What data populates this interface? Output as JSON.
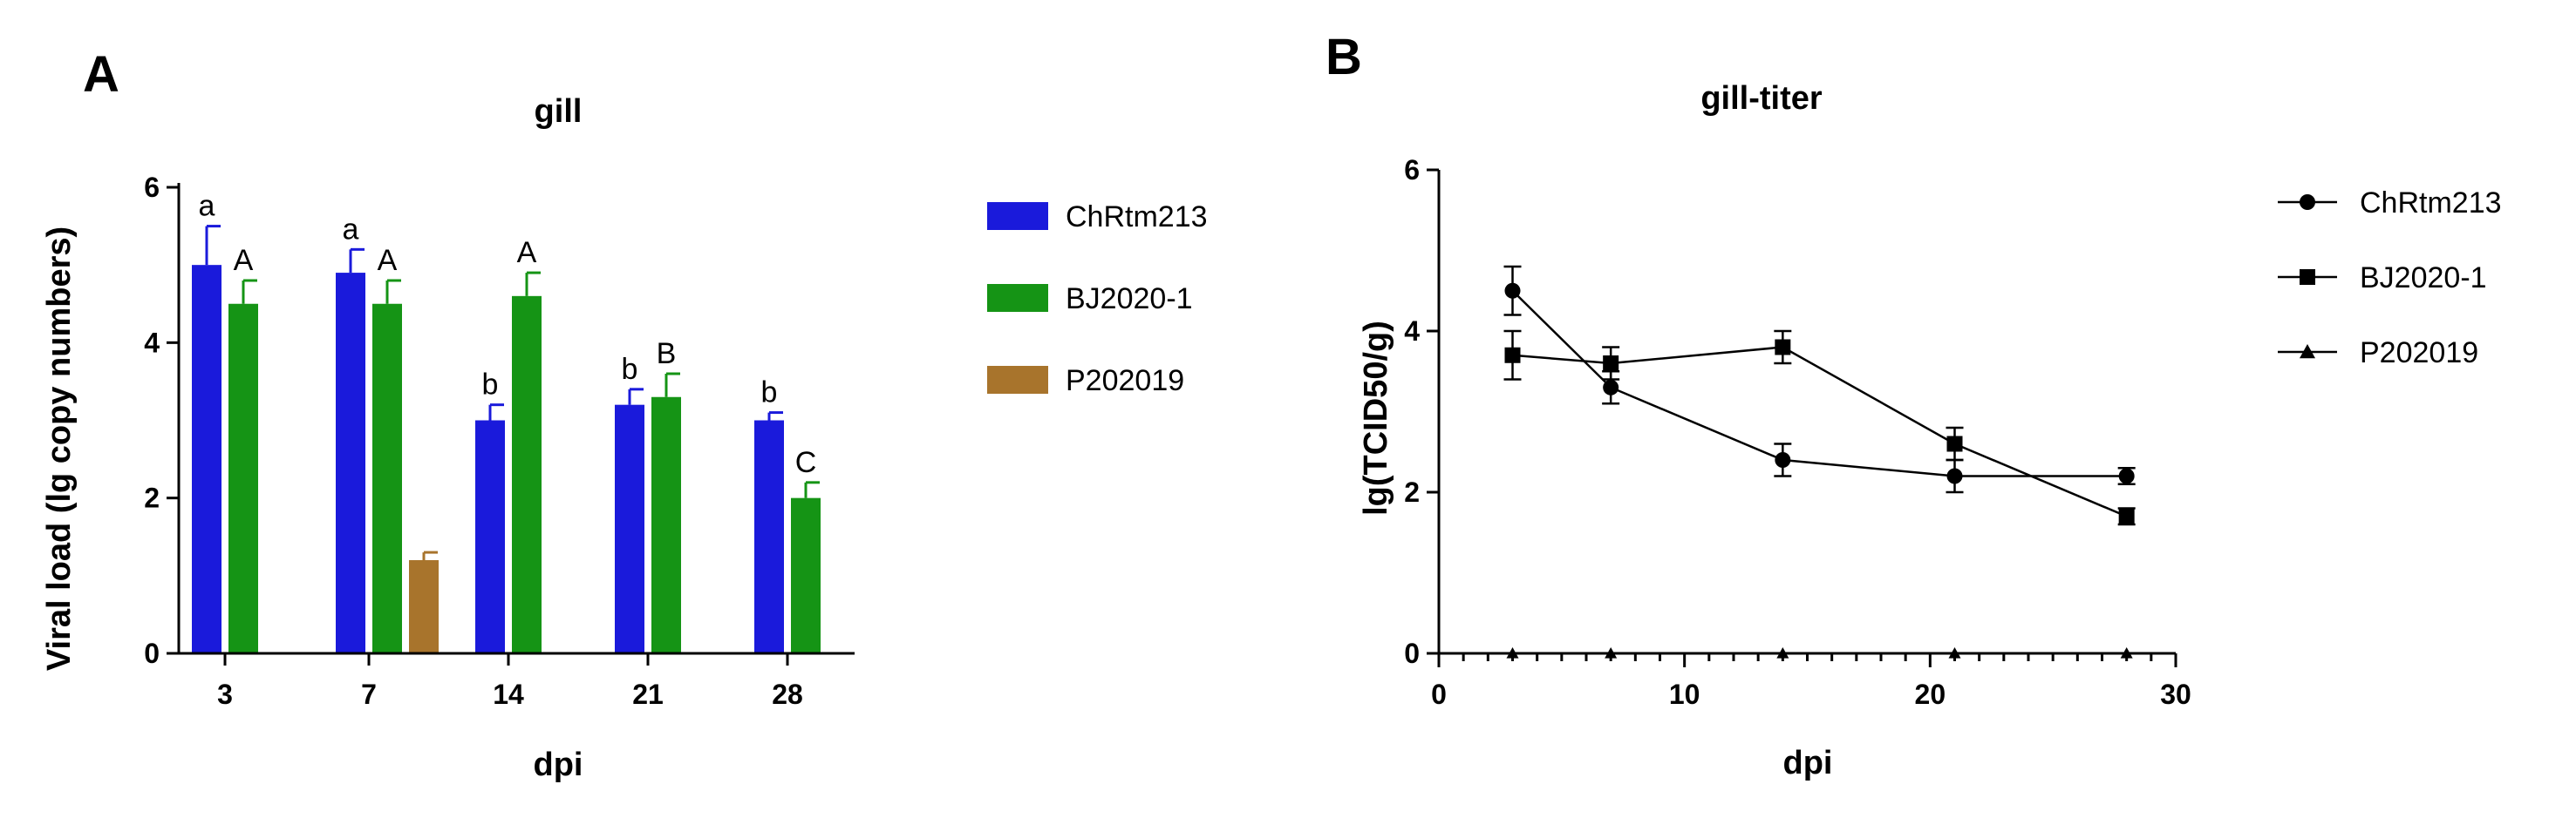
{
  "chart_data": [
    {
      "type": "bar",
      "panel": "A",
      "title": "gill",
      "xlabel": "dpi",
      "ylabel": "Viral load (lg copy numbers)",
      "ylim": [
        0,
        6
      ],
      "yticks": [
        0,
        2,
        4,
        6
      ],
      "categories": [
        "3",
        "7",
        "14",
        "21",
        "28"
      ],
      "series": [
        {
          "name": "ChRtm213",
          "color": "#1a1adb",
          "values": [
            5.0,
            4.9,
            3.0,
            3.2,
            3.0
          ],
          "errors": [
            0.5,
            0.3,
            0.2,
            0.2,
            0.1
          ],
          "labels": [
            "a",
            "a",
            "b",
            "b",
            "b"
          ]
        },
        {
          "name": "BJ2020-1",
          "color": "#159415",
          "values": [
            4.5,
            4.5,
            4.6,
            3.3,
            2.0
          ],
          "errors": [
            0.3,
            0.3,
            0.3,
            0.3,
            0.2
          ],
          "labels": [
            "A",
            "A",
            "A",
            "B",
            "C"
          ]
        },
        {
          "name": "P202019",
          "color": "#a8742c",
          "values": [
            null,
            1.2,
            null,
            null,
            null
          ],
          "errors": [
            null,
            0.1,
            null,
            null,
            null
          ],
          "labels": [
            null,
            null,
            null,
            null,
            null
          ]
        }
      ],
      "legend": "right"
    },
    {
      "type": "line",
      "panel": "B",
      "title": "gill-titer",
      "xlabel": "dpi",
      "ylabel": "lg(TCID50/g)",
      "xlim": [
        0,
        30
      ],
      "ylim": [
        0,
        6
      ],
      "xticks": [
        0,
        10,
        20,
        30
      ],
      "yticks": [
        0,
        2,
        4,
        6
      ],
      "x": [
        3,
        7,
        14,
        21,
        28
      ],
      "series": [
        {
          "name": "ChRtm213",
          "marker": "circle",
          "values": [
            4.5,
            3.3,
            2.4,
            2.2,
            2.2
          ],
          "errors": [
            0.3,
            0.2,
            0.2,
            0.2,
            0.1
          ]
        },
        {
          "name": "BJ2020-1",
          "marker": "square",
          "values": [
            3.7,
            3.6,
            3.8,
            2.6,
            1.7
          ],
          "errors": [
            0.3,
            0.2,
            0.2,
            0.2,
            0.1
          ]
        },
        {
          "name": "P202019",
          "marker": "triangle",
          "values": [
            0,
            0,
            0,
            0,
            0
          ],
          "errors": [
            0,
            0,
            0,
            0,
            0
          ]
        }
      ],
      "legend": "right"
    }
  ]
}
